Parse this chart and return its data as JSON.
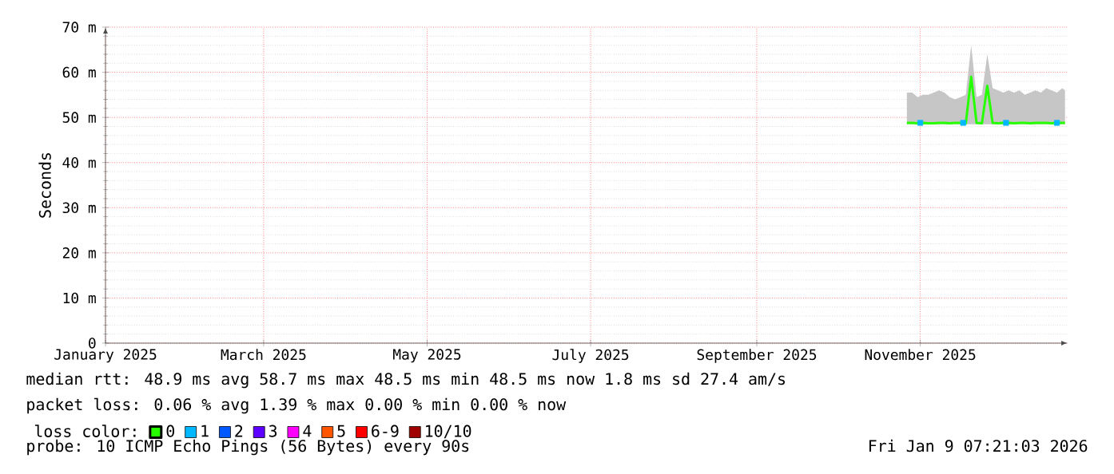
{
  "chart_data": {
    "type": "line",
    "ylabel": "Seconds",
    "legend_title": "loss color:",
    "legend": "bottom",
    "grid": true,
    "xlim": [
      "2025-01-01",
      "2025-12-26"
    ],
    "xticks": [
      {
        "value": "2025-01-01",
        "label": "January 2025"
      },
      {
        "value": "2025-03-01",
        "label": "March 2025"
      },
      {
        "value": "2025-05-01",
        "label": "May 2025"
      },
      {
        "value": "2025-07-01",
        "label": "July 2025"
      },
      {
        "value": "2025-09-01",
        "label": "September 2025"
      },
      {
        "value": "2025-11-01",
        "label": "November 2025"
      }
    ],
    "ylim": [
      0,
      70
    ],
    "yticks": [
      0,
      {
        "value": 10,
        "label": "10 m"
      },
      {
        "value": 20,
        "label": "20 m"
      },
      {
        "value": 30,
        "label": "30 m"
      },
      {
        "value": 40,
        "label": "40 m"
      },
      {
        "value": 50,
        "label": "50 m"
      },
      {
        "value": 60,
        "label": "60 m"
      },
      {
        "value": 70,
        "label": "70 m"
      }
    ],
    "series": [
      {
        "name": "0",
        "color": "#26ff00",
        "x": [
          "2025-10-27",
          "2025-10-29",
          "2025-10-31",
          "2025-11-02",
          "2025-11-04",
          "2025-11-06",
          "2025-11-08",
          "2025-11-10",
          "2025-11-12",
          "2025-11-14",
          "2025-11-16",
          "2025-11-18",
          "2025-11-20",
          "2025-11-22",
          "2025-11-24",
          "2025-11-26",
          "2025-11-28",
          "2025-11-30",
          "2025-12-02",
          "2025-12-04",
          "2025-12-06",
          "2025-12-08",
          "2025-12-10",
          "2025-12-12",
          "2025-12-14",
          "2025-12-16",
          "2025-12-18",
          "2025-12-20",
          "2025-12-22",
          "2025-12-24",
          "2025-12-25"
        ],
        "values": [
          48.8,
          48.8,
          48.7,
          48.8,
          48.7,
          48.7,
          48.8,
          48.8,
          48.7,
          48.8,
          48.8,
          48.7,
          59,
          48.8,
          48.7,
          57,
          48.8,
          48.7,
          48.8,
          48.8,
          48.7,
          48.8,
          48.8,
          48.7,
          48.8,
          48.8,
          48.8,
          48.7,
          48.8,
          48.8,
          48.8
        ],
        "lower": [
          48.5,
          48.5,
          48.5,
          48.5,
          48.5,
          48.5,
          48.5,
          48.5,
          48.5,
          48.5,
          48.5,
          48.5,
          48.5,
          48.5,
          48.5,
          48.5,
          48.5,
          48.5,
          48.5,
          48.5,
          48.5,
          48.5,
          48.5,
          48.5,
          48.5,
          48.5,
          48.5,
          48.5,
          48.5,
          48.5,
          48.5
        ],
        "upper": [
          55.5,
          55.5,
          54.5,
          55,
          55,
          55.5,
          56,
          55.5,
          54.5,
          54,
          54.5,
          55,
          66,
          54.5,
          55,
          64,
          56.5,
          56,
          55.5,
          56,
          55.5,
          56,
          55,
          55.5,
          56,
          55.5,
          56.5,
          56,
          55.5,
          56.5,
          56
        ]
      },
      {
        "name": "1",
        "color": "#00b8ff",
        "type": "scatter",
        "marker": "square",
        "x": [
          "2025-11-01",
          "2025-11-17",
          "2025-12-03",
          "2025-12-22"
        ],
        "values": [
          48.8,
          48.8,
          48.8,
          48.8
        ]
      },
      {
        "name": "2",
        "color": "#0059ff",
        "type": "scatter",
        "marker": "square"
      },
      {
        "name": "3",
        "color": "#5e00ff",
        "type": "scatter",
        "marker": "square"
      },
      {
        "name": "4",
        "color": "#ff00ff",
        "type": "scatter",
        "marker": "square"
      },
      {
        "name": "5",
        "color": "#ff5500",
        "type": "scatter",
        "marker": "square"
      },
      {
        "name": "6-9",
        "color": "#ff0000",
        "type": "scatter",
        "marker": "square"
      },
      {
        "name": "10/10",
        "color": "#a10000",
        "type": "scatter",
        "marker": "square"
      }
    ],
    "annotations": [
      "median rtt:  48.9 ms avg  58.7 ms max  48.5 ms min  48.5 ms now  1.8 ms sd  27.4   am/s",
      "packet loss: 0.06 % avg  1.39 % max  0.00 % min  0.00 % now",
      "probe:       10 ICMP Echo Pings (56 Bytes) every 90s",
      "Fri Jan  9 07:21:03 2026"
    ]
  }
}
